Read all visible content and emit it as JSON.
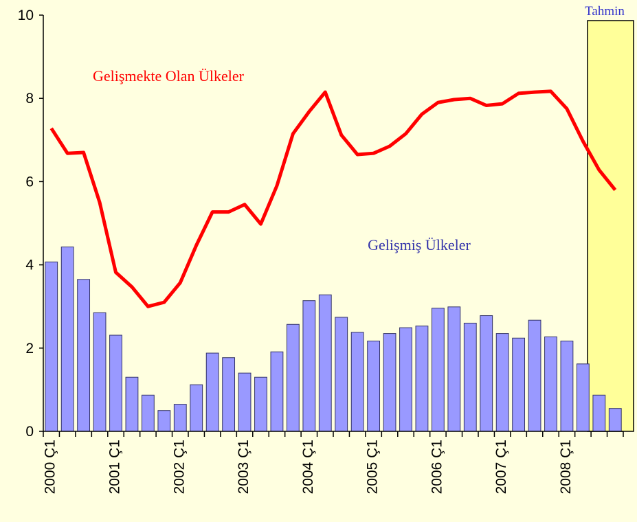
{
  "chart_data": {
    "type": "bar_line",
    "categories": [
      "2000 Ç1",
      null,
      null,
      null,
      "2001 Ç1",
      null,
      null,
      null,
      "2002 Ç1",
      null,
      null,
      null,
      "2003 Ç1",
      null,
      null,
      null,
      "2004 Ç1",
      null,
      null,
      null,
      "2005 Ç1",
      null,
      null,
      null,
      "2006 Ç1",
      null,
      null,
      null,
      "2007 Ç1",
      null,
      null,
      null,
      "2008 Ç1",
      null,
      null,
      null
    ],
    "series": [
      {
        "name": "Gelişmiş Ülkeler",
        "kind": "bar",
        "color": "#9999ff",
        "values": [
          4.07,
          4.43,
          3.65,
          2.85,
          2.31,
          1.3,
          0.87,
          0.5,
          0.65,
          1.12,
          1.88,
          1.77,
          1.4,
          1.3,
          1.91,
          2.57,
          3.14,
          3.28,
          2.74,
          2.38,
          2.17,
          2.35,
          2.49,
          2.53,
          2.96,
          2.99,
          2.6,
          2.78,
          2.35,
          2.24,
          2.67,
          2.27,
          2.17,
          1.62,
          0.87,
          0.55
        ]
      },
      {
        "name": "Gelişmekte Olan Ülkeler",
        "kind": "line",
        "color": "#ff0000",
        "values": [
          7.28,
          6.68,
          6.7,
          5.5,
          3.82,
          3.47,
          3.0,
          3.1,
          3.57,
          4.47,
          5.27,
          5.27,
          5.45,
          4.98,
          5.9,
          7.15,
          7.68,
          8.15,
          7.12,
          6.65,
          6.68,
          6.85,
          7.15,
          7.62,
          7.9,
          7.97,
          8.0,
          7.83,
          7.87,
          8.12,
          8.15,
          8.17,
          7.75,
          6.97,
          6.28,
          5.8
        ]
      }
    ],
    "annotations": [
      "Tahmin"
    ],
    "ylim": [
      0,
      10
    ],
    "yticks": [
      0,
      2,
      4,
      6,
      8,
      10
    ]
  }
}
